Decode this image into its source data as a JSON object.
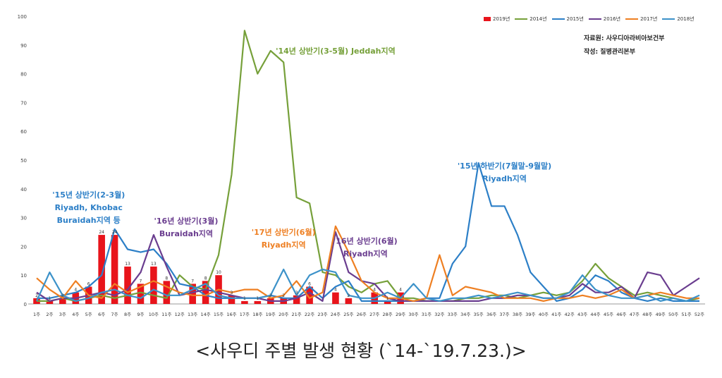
{
  "caption": "<사우디 주별 발생 현황 (`14-`19.7.23.)>",
  "source": {
    "line1": "자료원: 사우디아라비아보건부",
    "line2": "작성: 질병관리본부"
  },
  "legend": [
    {
      "label": "2019년",
      "color": "#e8141b",
      "kind": "bar"
    },
    {
      "label": "2014년",
      "color": "#76a03a",
      "kind": "line"
    },
    {
      "label": "2015년",
      "color": "#2c7fc7",
      "kind": "line"
    },
    {
      "label": "2016년",
      "color": "#6a3d8f",
      "kind": "line"
    },
    {
      "label": "2017년",
      "color": "#ee7f22",
      "kind": "line"
    },
    {
      "label": "2018년",
      "color": "#3c92c9",
      "kind": "line"
    }
  ],
  "annotations": [
    {
      "lines": [
        "'15년 상반기(2-3월)",
        "Riyadh, Khobac",
        "Buraidah지역 등"
      ],
      "color": "#2c7fc7",
      "week": 5,
      "value": 37,
      "align": "middle"
    },
    {
      "lines": [
        "'16년 상반기(3월)",
        "Buraidah지역"
      ],
      "color": "#6a3d8f",
      "week": 12.5,
      "value": 28,
      "align": "middle"
    },
    {
      "lines": [
        "'14년 상반기(3-5월) Jeddah지역"
      ],
      "color": "#76a03a",
      "week": 24,
      "value": 87,
      "align": "middle"
    },
    {
      "lines": [
        "'17년 상반기(6월)",
        "Riyadh지역"
      ],
      "color": "#ee7f22",
      "week": 20,
      "value": 24,
      "align": "middle"
    },
    {
      "lines": [
        "'16년 상반기(6월)",
        "Riyadh지역"
      ],
      "color": "#6a3d8f",
      "week": 26.3,
      "value": 21,
      "align": "middle"
    },
    {
      "lines": [
        "'15년 하반기(7월말-9월말)",
        "Riyadh지역"
      ],
      "color": "#2c7fc7",
      "week": 37,
      "value": 47,
      "align": "middle"
    }
  ],
  "chart_data": {
    "type": "bar",
    "ylim": [
      0,
      100
    ],
    "yticks": [
      0,
      10,
      20,
      30,
      40,
      50,
      60,
      70,
      80,
      90,
      100
    ],
    "categories": [
      "1주",
      "2주",
      "3주",
      "4주",
      "5주",
      "6주",
      "7주",
      "8주",
      "9주",
      "10주",
      "11주",
      "12주",
      "13주",
      "14주",
      "15주",
      "16주",
      "17주",
      "18주",
      "19주",
      "20주",
      "21주",
      "22주",
      "23주",
      "24주",
      "25주",
      "26주",
      "27주",
      "28주",
      "29주",
      "30주",
      "31주",
      "32주",
      "33주",
      "34주",
      "35주",
      "36주",
      "37주",
      "38주",
      "39주",
      "40주",
      "41주",
      "42주",
      "43주",
      "44주",
      "45주",
      "46주",
      "47주",
      "48주",
      "49주",
      "50주",
      "51주",
      "52주"
    ],
    "bar_series": {
      "name": "2019년",
      "color": "#e8141b",
      "values": [
        2,
        1,
        2,
        4,
        6,
        24,
        24,
        13,
        7,
        13,
        8,
        0,
        7,
        8,
        10,
        3,
        1,
        1,
        2,
        2,
        3,
        6,
        0,
        4,
        2,
        0,
        4,
        1,
        4,
        0,
        0,
        0,
        0,
        0,
        0,
        0,
        0,
        0,
        0,
        0,
        0,
        0,
        0,
        0,
        0,
        0,
        0,
        0,
        0,
        0,
        0,
        0
      ],
      "labels": [
        "2",
        "1",
        "2",
        "4",
        "6",
        "24",
        "24",
        "13",
        "7",
        "13",
        "8",
        "",
        "7",
        "8",
        "10",
        "3",
        "1",
        "1",
        "2",
        "2",
        "3",
        "6",
        "",
        "4",
        "2",
        "",
        "4",
        "1",
        "4",
        "",
        "",
        "",
        "",
        "",
        "",
        "",
        "",
        "",
        "",
        "",
        "",
        "",
        "",
        "",
        "",
        "",
        "",
        "",
        "",
        "",
        "",
        ""
      ]
    },
    "series": [
      {
        "name": "2014년",
        "color": "#76a03a",
        "values": [
          1,
          1,
          2,
          1,
          2,
          3,
          2,
          3,
          4,
          3,
          2,
          10,
          6,
          5,
          17,
          45,
          95,
          80,
          88,
          84,
          37,
          35,
          11,
          10,
          6,
          4,
          7,
          8,
          2,
          2,
          1,
          1,
          1,
          2,
          2,
          3,
          3,
          2,
          3,
          4,
          3,
          4,
          8,
          14,
          9,
          6,
          3,
          4,
          3,
          2,
          1,
          2
        ]
      },
      {
        "name": "2015년",
        "color": "#2c7fc7",
        "values": [
          2,
          2,
          3,
          4,
          6,
          10,
          26,
          19,
          18,
          19,
          14,
          7,
          6,
          3,
          2,
          2,
          2,
          2,
          3,
          2,
          2,
          6,
          2,
          6,
          8,
          1,
          1,
          1,
          1,
          1,
          2,
          2,
          14,
          20,
          49,
          34,
          34,
          24,
          11,
          6,
          1,
          2,
          5,
          10,
          8,
          4,
          2,
          1,
          2,
          1,
          1,
          1
        ]
      },
      {
        "name": "2016년",
        "color": "#6a3d8f",
        "values": [
          4,
          1,
          2,
          2,
          3,
          4,
          3,
          5,
          11,
          24,
          13,
          3,
          4,
          5,
          4,
          3,
          2,
          2,
          1,
          1,
          2,
          4,
          1,
          25,
          11,
          8,
          7,
          2,
          1,
          1,
          1,
          1,
          1,
          1,
          1,
          2,
          2,
          3,
          3,
          2,
          2,
          3,
          7,
          4,
          4,
          6,
          2,
          11,
          10,
          3,
          6,
          9
        ]
      },
      {
        "name": "2017년",
        "color": "#ee7f22",
        "values": [
          9,
          5,
          2,
          8,
          3,
          2,
          7,
          4,
          6,
          8,
          6,
          4,
          3,
          3,
          5,
          4,
          5,
          5,
          2,
          3,
          8,
          2,
          4,
          27,
          18,
          8,
          4,
          2,
          2,
          1,
          2,
          17,
          3,
          6,
          5,
          4,
          2,
          2,
          2,
          1,
          2,
          2,
          3,
          2,
          3,
          5,
          2,
          3,
          4,
          3,
          2,
          2
        ]
      },
      {
        "name": "2018년",
        "color": "#3c92c9",
        "values": [
          1,
          11,
          3,
          1,
          2,
          4,
          5,
          3,
          2,
          5,
          3,
          3,
          5,
          7,
          3,
          2,
          2,
          2,
          3,
          12,
          3,
          10,
          12,
          11,
          3,
          2,
          2,
          4,
          2,
          7,
          2,
          1,
          2,
          2,
          3,
          2,
          3,
          4,
          3,
          2,
          2,
          4,
          10,
          5,
          3,
          2,
          2,
          3,
          1,
          2,
          1,
          3
        ]
      }
    ]
  }
}
